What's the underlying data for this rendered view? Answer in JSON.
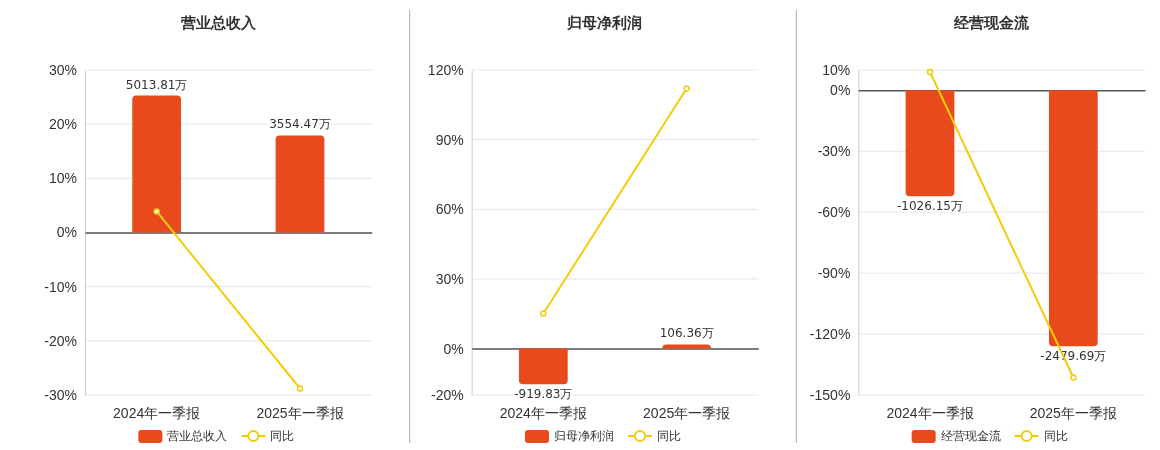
{
  "chart_data": [
    {
      "type": "bar",
      "title": "营业总收入",
      "categories": [
        "2024年一季报",
        "2025年一季报"
      ],
      "series": [
        {
          "name": "营业总收入",
          "axis": "y2",
          "color": "#e84a1c",
          "values": [
            5013.81,
            3554.47
          ],
          "value_labels": [
            "5013.81万",
            "3554.47万"
          ]
        },
        {
          "name": "同比",
          "type": "line",
          "color": "#f2cc0c",
          "values": [
            3.9,
            -28.8
          ]
        }
      ],
      "ylim": [
        -30,
        30
      ],
      "yticks": [
        {
          "value": -30,
          "label": "-30%"
        },
        {
          "value": -20,
          "label": "-20%"
        },
        {
          "value": -10,
          "label": "-10%"
        },
        {
          "value": 0,
          "label": "0%"
        },
        {
          "value": 10,
          "label": "10%"
        },
        {
          "value": 20,
          "label": "20%"
        },
        {
          "value": 30,
          "label": "30%"
        }
      ],
      "y2lim": [
        -5950,
        5950
      ],
      "grid": "y",
      "legend": "bottom",
      "marker": "circle"
    },
    {
      "type": "bar",
      "title": "归母净利润",
      "categories": [
        "2024年一季报",
        "2025年一季报"
      ],
      "series": [
        {
          "name": "归母净利润",
          "axis": "y2",
          "color": "#e84a1c",
          "values": [
            -919.83,
            106.36
          ],
          "value_labels": [
            "-919.83万",
            "106.36万"
          ]
        },
        {
          "name": "同比",
          "type": "line",
          "color": "#f2cc0c",
          "values": [
            15.1,
            112
          ]
        }
      ],
      "ylim": [
        -20,
        120
      ],
      "yticks": [
        {
          "value": -20,
          "label": "-20%"
        },
        {
          "value": 0,
          "label": "0%"
        },
        {
          "value": 30,
          "label": "30%"
        },
        {
          "value": 60,
          "label": "60%"
        },
        {
          "value": 90,
          "label": "90%"
        },
        {
          "value": 120,
          "label": "120%"
        }
      ],
      "y2lim": [
        -1200,
        7200
      ],
      "grid": "y",
      "legend": "bottom",
      "marker": "circle"
    },
    {
      "type": "bar",
      "title": "经营现金流",
      "categories": [
        "2024年一季报",
        "2025年一季报"
      ],
      "series": [
        {
          "name": "经营现金流",
          "axis": "y2",
          "color": "#e84a1c",
          "values": [
            -1026.15,
            -2479.69
          ],
          "value_labels": [
            "-1026.15万",
            "-2479.69万"
          ]
        },
        {
          "name": "同比",
          "type": "line",
          "color": "#f2cc0c",
          "values": [
            9,
            -141.4
          ]
        }
      ],
      "ylim": [
        -150,
        10
      ],
      "yticks": [
        {
          "value": -150,
          "label": "-150%"
        },
        {
          "value": -120,
          "label": "-120%"
        },
        {
          "value": -90,
          "label": "-90%"
        },
        {
          "value": -60,
          "label": "-60%"
        },
        {
          "value": -30,
          "label": "-30%"
        },
        {
          "value": 0,
          "label": "0%"
        },
        {
          "value": 10,
          "label": "10%"
        }
      ],
      "y2lim": [
        -2952,
        197
      ],
      "grid": "y",
      "legend": "bottom",
      "marker": "circle"
    }
  ]
}
